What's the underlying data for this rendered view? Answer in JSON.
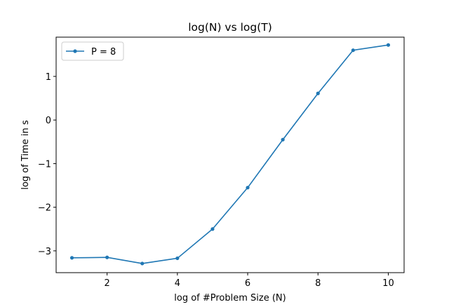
{
  "chart_data": {
    "type": "line",
    "title": "log(N) vs log(T)",
    "xlabel": "log of #Problem Size (N)",
    "ylabel": "log of Time in s",
    "xlim": [
      0.55,
      10.45
    ],
    "ylim": [
      -3.5,
      1.9
    ],
    "xticks": [
      2,
      4,
      6,
      8,
      10
    ],
    "xtick_labels": [
      "2",
      "4",
      "6",
      "8",
      "10"
    ],
    "yticks": [
      -3,
      -2,
      -1,
      0,
      1
    ],
    "ytick_labels": [
      "−3",
      "−2",
      "−1",
      "0",
      "1"
    ],
    "grid": false,
    "legend": {
      "position": "top-left"
    },
    "series": [
      {
        "name": "P = 8",
        "color": "#1f77b4",
        "marker": "circle",
        "x": [
          1,
          2,
          3,
          4,
          5,
          6,
          7,
          8,
          9,
          10
        ],
        "y": [
          -3.16,
          -3.15,
          -3.29,
          -3.17,
          -2.5,
          -1.55,
          -0.45,
          0.61,
          1.6,
          1.72
        ]
      }
    ]
  }
}
